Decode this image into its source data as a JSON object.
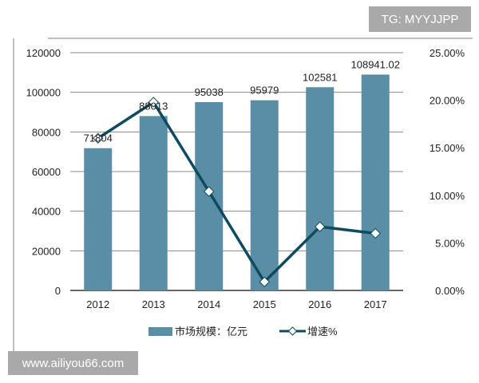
{
  "watermarks": {
    "top_right": "TG: MYYJJPP",
    "bottom_left": "www.ailiyou66.com"
  },
  "colors": {
    "bar": "#5a8ea7",
    "line": "#0f4b5e",
    "grid": "#8a8a8a"
  },
  "chart_data": {
    "type": "bar",
    "categories": [
      "2012",
      "2013",
      "2014",
      "2015",
      "2016",
      "2017"
    ],
    "series": [
      {
        "name": "市场规模：亿元",
        "type": "bar",
        "axis": "left",
        "values": [
          71804,
          88013,
          95038,
          95979,
          102581,
          108941.02
        ],
        "labels": [
          "71804",
          "88013",
          "95038",
          "95979",
          "102581",
          "108941.02"
        ]
      },
      {
        "name": "增速%",
        "type": "line",
        "axis": "right",
        "values": [
          16.0,
          19.8,
          10.4,
          0.9,
          6.7,
          6.0
        ]
      }
    ],
    "y_left": {
      "range": [
        0,
        120000
      ],
      "ticks": [
        "0",
        "20000",
        "40000",
        "60000",
        "80000",
        "100000",
        "120000"
      ]
    },
    "y_right": {
      "range": [
        0,
        25
      ],
      "ticks": [
        "0.00%",
        "5.00%",
        "10.00%",
        "15.00%",
        "20.00%",
        "25.00%"
      ]
    },
    "grid": true,
    "legend": {
      "placement": "bottom",
      "items": [
        "市场规模：亿元",
        "增速%"
      ]
    }
  }
}
